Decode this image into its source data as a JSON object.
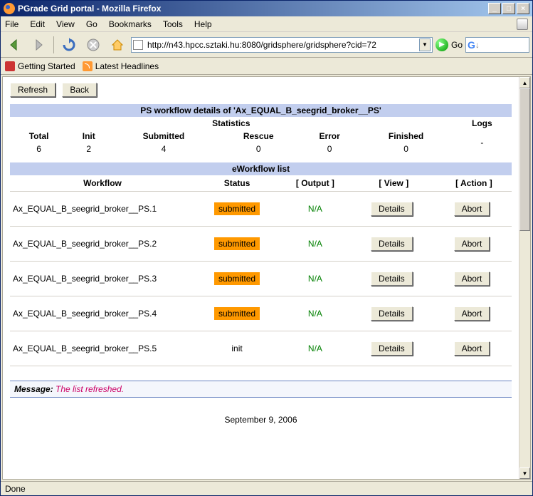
{
  "window": {
    "title": "PGrade Grid portal - Mozilla Firefox"
  },
  "menu": {
    "file": "File",
    "edit": "Edit",
    "view": "View",
    "go": "Go",
    "bookmarks": "Bookmarks",
    "tools": "Tools",
    "help": "Help"
  },
  "toolbar": {
    "url": "http://n43.hpcc.sztaki.hu:8080/gridsphere/gridsphere?cid=72",
    "go": "Go"
  },
  "bookmarks": {
    "started": "Getting Started",
    "headlines": "Latest Headlines"
  },
  "buttons": {
    "refresh": "Refresh",
    "back": "Back",
    "details": "Details",
    "abort": "Abort"
  },
  "headers": {
    "ps": "PS workflow details of 'Ax_EQUAL_B_seegrid_broker__PS'",
    "stats": "Statistics",
    "logs": "Logs",
    "total": "Total",
    "init": "Init",
    "submitted": "Submitted",
    "rescue": "Rescue",
    "error": "Error",
    "finished": "Finished",
    "ewf": "eWorkflow list",
    "workflow": "Workflow",
    "status": "Status",
    "output": "[ Output ]",
    "view": "[ View ]",
    "action": "[ Action ]"
  },
  "stats": {
    "total": "6",
    "init": "2",
    "submitted": "4",
    "rescue": "0",
    "error": "0",
    "finished": "0",
    "logs": "-"
  },
  "rows": [
    {
      "name": "Ax_EQUAL_B_seegrid_broker__PS.1",
      "status": "submitted",
      "status_bg": "#ff9900",
      "output": "N/A"
    },
    {
      "name": "Ax_EQUAL_B_seegrid_broker__PS.2",
      "status": "submitted",
      "status_bg": "#ff9900",
      "output": "N/A"
    },
    {
      "name": "Ax_EQUAL_B_seegrid_broker__PS.3",
      "status": "submitted",
      "status_bg": "#ff9900",
      "output": "N/A"
    },
    {
      "name": "Ax_EQUAL_B_seegrid_broker__PS.4",
      "status": "submitted",
      "status_bg": "#ff9900",
      "output": "N/A"
    },
    {
      "name": "Ax_EQUAL_B_seegrid_broker__PS.5",
      "status": "init",
      "status_bg": "",
      "output": "N/A"
    }
  ],
  "message": {
    "label": "Message:",
    "text": "The list refreshed."
  },
  "date": "September 9, 2006",
  "statusbar": "Done",
  "colors": {
    "header_bg": "#c2ceee",
    "submitted_bg": "#ff9900",
    "na_color": "#008000",
    "msg_color": "#cc0066"
  }
}
